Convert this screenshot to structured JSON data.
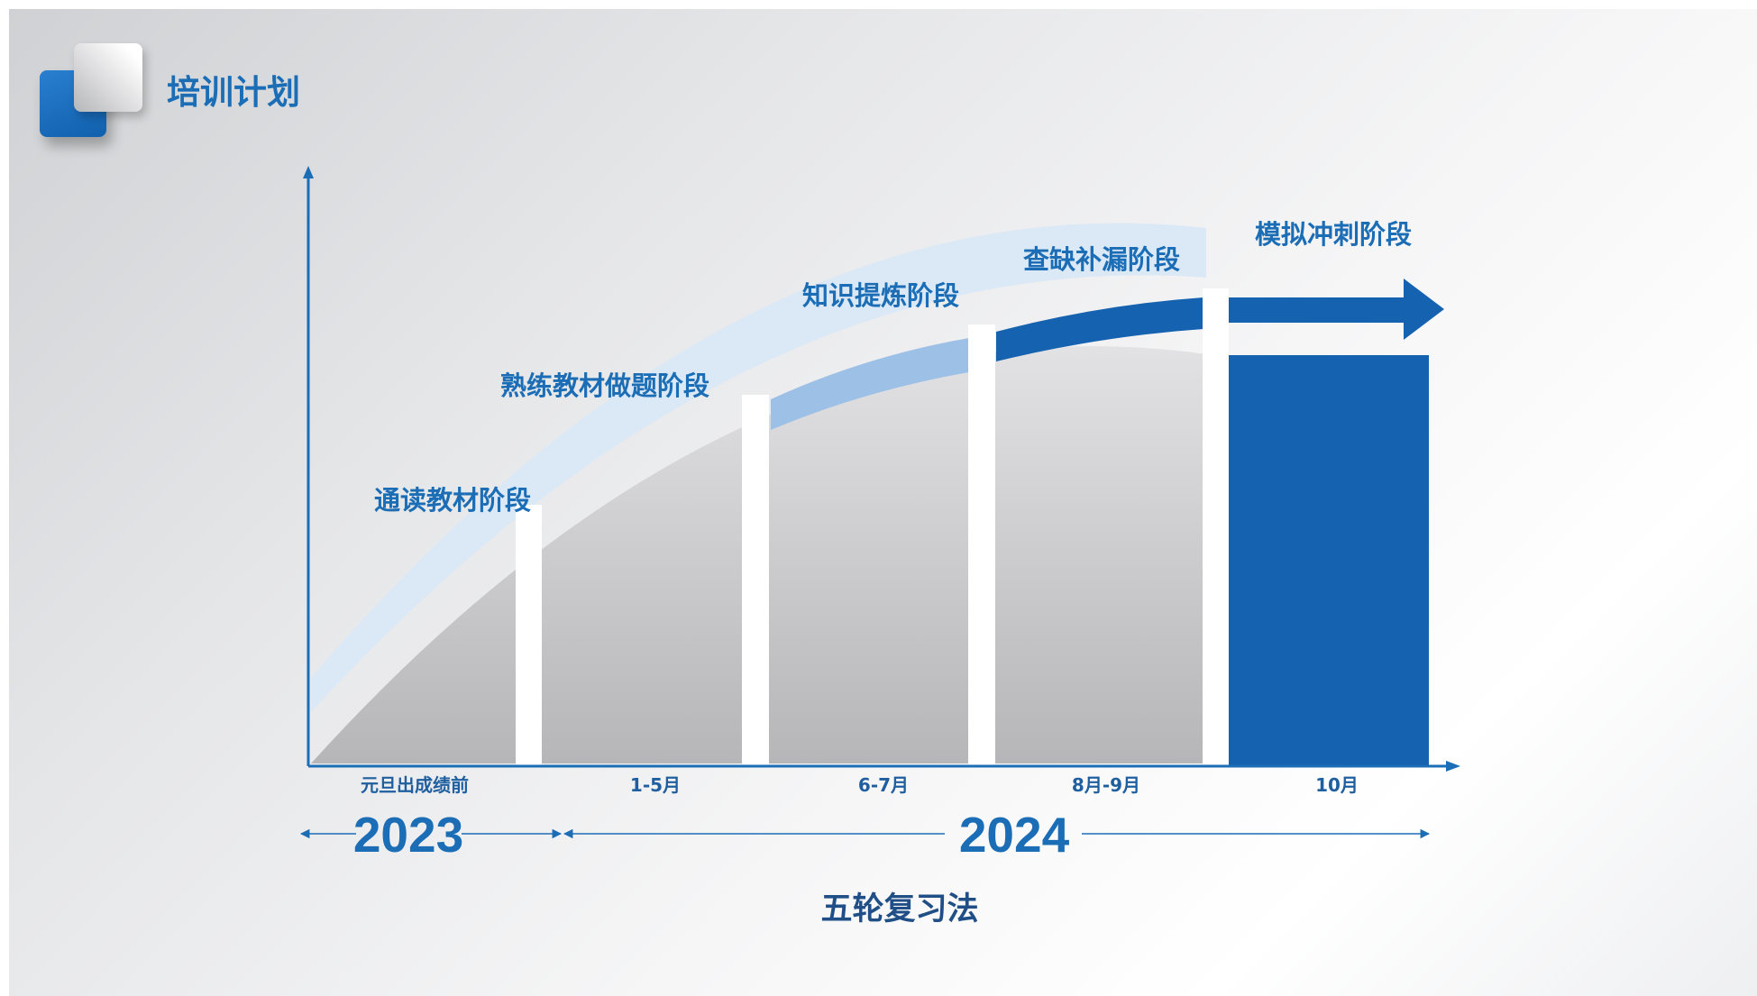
{
  "header": {
    "title": "培训计划",
    "logo_icon": "stacked-squares-logo"
  },
  "diagram": {
    "type": "staircase-timeline",
    "stages": [
      {
        "name": "通读教材阶段",
        "period": "元旦出成绩前",
        "color": "#dbe8f6"
      },
      {
        "name": "熟练教材做题阶段",
        "period": "1-5月",
        "color": "#dbe8f6"
      },
      {
        "name": "知识提炼阶段",
        "period": "6-7月",
        "color": "#9dc0e6"
      },
      {
        "name": "查缺补漏阶段",
        "period": "8月-9月",
        "color": "#1563b0"
      },
      {
        "name": "模拟冲刺阶段",
        "period": "10月",
        "color": "#1563b0"
      }
    ],
    "years": [
      "2023",
      "2024"
    ],
    "method": "五轮复习法"
  },
  "colors": {
    "accent": "#1b6db5",
    "bar_dark": "#1563b0",
    "arc_light": "#dbe8f6",
    "arc_mid": "#9dc0e6"
  }
}
